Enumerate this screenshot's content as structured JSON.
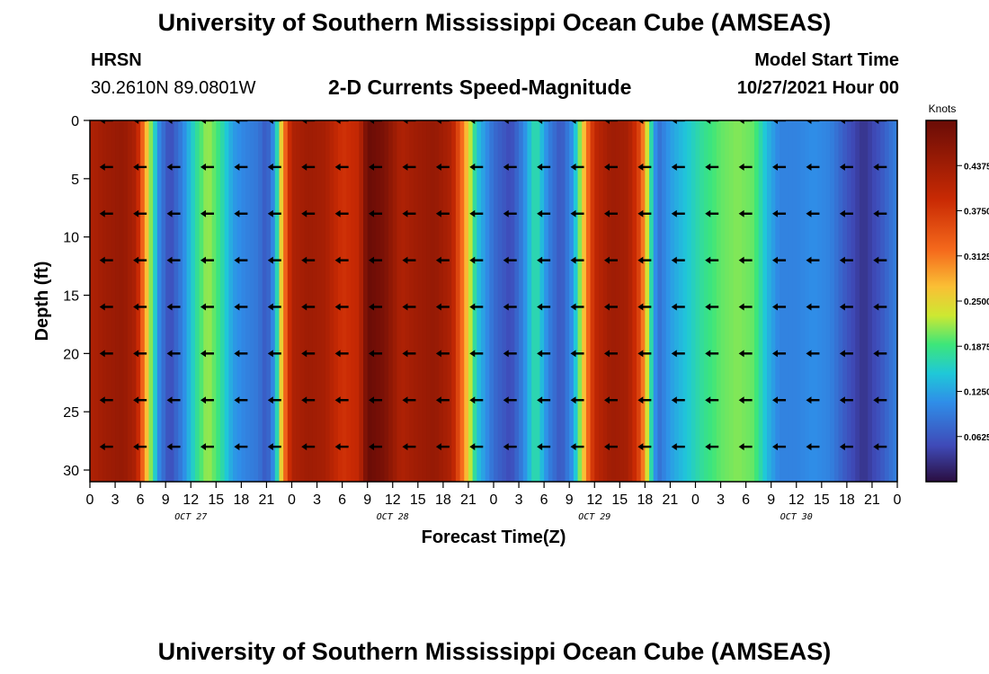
{
  "title": "University of Southern Mississippi Ocean Cube (AMSEAS)",
  "station": {
    "name": "HRSN",
    "location": "30.2610N  89.0801W"
  },
  "plot_title": "2-D Currents Speed-Magnitude",
  "model_start": {
    "label": "Model Start Time",
    "value": "10/27/2021 Hour 00"
  },
  "footer_title": "University of Southern Mississippi Ocean Cube (AMSEAS)",
  "chart_data": {
    "type": "heatmap",
    "title": "2-D Currents Speed-Magnitude",
    "xlabel": "Forecast Time(Z)",
    "ylabel": "Depth (ft)",
    "x_ticks": [
      "0",
      "3",
      "6",
      "9",
      "12",
      "15",
      "18",
      "21",
      "0",
      "3",
      "6",
      "9",
      "12",
      "15",
      "18",
      "21",
      "0",
      "3",
      "6",
      "9",
      "12",
      "15",
      "18",
      "21",
      "0",
      "3",
      "6",
      "9",
      "12",
      "15",
      "18",
      "21",
      "0"
    ],
    "x_range_hours": [
      0,
      96
    ],
    "day_labels": [
      {
        "label": "OCT 27",
        "hour": 12
      },
      {
        "label": "OCT 28",
        "hour": 36
      },
      {
        "label": "OCT 29",
        "hour": 60
      },
      {
        "label": "OCT 30",
        "hour": 84
      }
    ],
    "y_ticks": [
      0,
      5,
      10,
      15,
      20,
      25,
      30
    ],
    "ylim": [
      0,
      31
    ],
    "colorbar": {
      "label": "Knots",
      "ticks": [
        "0.4375",
        "0.3750",
        "0.3125",
        "0.2500",
        "0.1875",
        "0.1250",
        "0.0625"
      ],
      "tick_values": [
        0.4375,
        0.375,
        0.3125,
        0.25,
        0.1875,
        0.125,
        0.0625
      ],
      "range": [
        0,
        0.5
      ]
    },
    "speed_profile_knots": [
      {
        "hour": 0,
        "speed": 0.42
      },
      {
        "hour": 2,
        "speed": 0.44
      },
      {
        "hour": 4,
        "speed": 0.45
      },
      {
        "hour": 5.5,
        "speed": 0.42
      },
      {
        "hour": 6.5,
        "speed": 0.3
      },
      {
        "hour": 7.5,
        "speed": 0.18
      },
      {
        "hour": 8.3,
        "speed": 0.1
      },
      {
        "hour": 9.5,
        "speed": 0.05
      },
      {
        "hour": 11,
        "speed": 0.1
      },
      {
        "hour": 12.5,
        "speed": 0.17
      },
      {
        "hour": 14,
        "speed": 0.22
      },
      {
        "hour": 15.5,
        "speed": 0.18
      },
      {
        "hour": 17,
        "speed": 0.12
      },
      {
        "hour": 18.5,
        "speed": 0.1
      },
      {
        "hour": 20,
        "speed": 0.09
      },
      {
        "hour": 21,
        "speed": 0.06
      },
      {
        "hour": 22,
        "speed": 0.12
      },
      {
        "hour": 23,
        "speed": 0.3
      },
      {
        "hour": 24,
        "speed": 0.42
      },
      {
        "hour": 26,
        "speed": 0.44
      },
      {
        "hour": 28,
        "speed": 0.43
      },
      {
        "hour": 30,
        "speed": 0.38
      },
      {
        "hour": 32,
        "speed": 0.4
      },
      {
        "hour": 33,
        "speed": 0.5
      },
      {
        "hour": 35,
        "speed": 0.48
      },
      {
        "hour": 37,
        "speed": 0.42
      },
      {
        "hour": 39,
        "speed": 0.44
      },
      {
        "hour": 41,
        "speed": 0.45
      },
      {
        "hour": 43,
        "speed": 0.42
      },
      {
        "hour": 44.5,
        "speed": 0.3
      },
      {
        "hour": 46,
        "speed": 0.15
      },
      {
        "hour": 48,
        "speed": 0.08
      },
      {
        "hour": 50,
        "speed": 0.05
      },
      {
        "hour": 51.5,
        "speed": 0.1
      },
      {
        "hour": 53,
        "speed": 0.18
      },
      {
        "hour": 54.5,
        "speed": 0.1
      },
      {
        "hour": 56,
        "speed": 0.06
      },
      {
        "hour": 57.5,
        "speed": 0.12
      },
      {
        "hour": 59,
        "speed": 0.3
      },
      {
        "hour": 60,
        "speed": 0.4
      },
      {
        "hour": 62,
        "speed": 0.44
      },
      {
        "hour": 64,
        "speed": 0.43
      },
      {
        "hour": 65.5,
        "speed": 0.35
      },
      {
        "hour": 66.5,
        "speed": 0.2
      },
      {
        "hour": 67.5,
        "speed": 0.08
      },
      {
        "hour": 69,
        "speed": 0.12
      },
      {
        "hour": 71,
        "speed": 0.15
      },
      {
        "hour": 73,
        "speed": 0.18
      },
      {
        "hour": 75,
        "speed": 0.2
      },
      {
        "hour": 77,
        "speed": 0.21
      },
      {
        "hour": 79,
        "speed": 0.2
      },
      {
        "hour": 80.5,
        "speed": 0.14
      },
      {
        "hour": 82,
        "speed": 0.1
      },
      {
        "hour": 84,
        "speed": 0.1
      },
      {
        "hour": 86,
        "speed": 0.11
      },
      {
        "hour": 88,
        "speed": 0.1
      },
      {
        "hour": 90,
        "speed": 0.06
      },
      {
        "hour": 92,
        "speed": 0.03
      },
      {
        "hour": 94,
        "speed": 0.06
      },
      {
        "hour": 96,
        "speed": 0.1
      }
    ],
    "vector_depths_ft": [
      0,
      4,
      8,
      12,
      16,
      20,
      24,
      28
    ],
    "vector_hours": [
      2,
      6,
      10,
      14,
      18,
      22,
      26,
      30,
      34,
      38,
      42,
      46,
      50,
      54,
      58,
      62,
      66,
      70,
      74,
      78,
      82,
      86,
      90,
      94
    ],
    "vector_note": "arrows show current direction; mostly westward"
  }
}
